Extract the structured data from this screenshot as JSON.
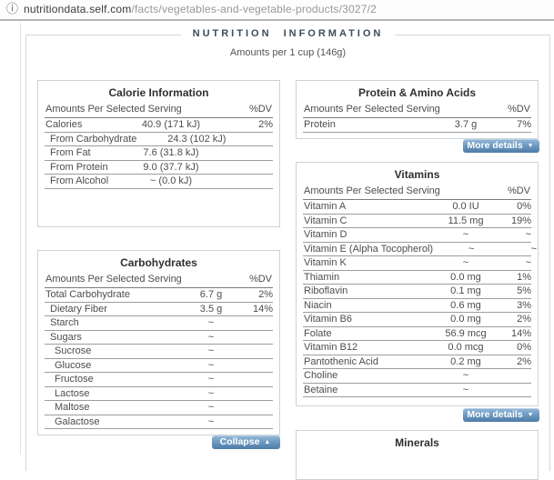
{
  "browser": {
    "info_icon": "ⓘ",
    "url_domain": "nutritiondata.self.com",
    "url_path": "/facts/vegetables-and-vegetable-products/3027/2"
  },
  "header": {
    "section_title": "NUTRITION INFORMATION",
    "serving_note": "Amounts per 1 cup (146g)"
  },
  "labels": {
    "amounts_header": "Amounts Per Selected Serving",
    "dv_header": "%DV",
    "more_details": "More details",
    "collapse": "Collapse",
    "chevron_down": "▼",
    "chevron_up": "▲"
  },
  "colors": {
    "button_gradient_top": "#96b9d8",
    "button_gradient_bottom": "#4e7ba6",
    "box_border": "#c9d3da",
    "row_divider": "#9d9d9d",
    "header_divider": "#7c7c7c",
    "legend_text": "#3d4c5c"
  },
  "tables": {
    "calories": {
      "title": "Calorie Information",
      "rows": [
        {
          "label": "Calories",
          "amount": "40.9 (171 kJ)",
          "dv": "2%",
          "indent": 0
        },
        {
          "label": "From Carbohydrate",
          "amount": "24.3 (102 kJ)",
          "dv": "",
          "indent": 1
        },
        {
          "label": "From Fat",
          "amount": "7.6 (31.8 kJ)",
          "dv": "",
          "indent": 1
        },
        {
          "label": "From Protein",
          "amount": "9.0 (37.7 kJ)",
          "dv": "",
          "indent": 1
        },
        {
          "label": "From Alcohol",
          "amount": "~ (0.0 kJ)",
          "dv": "",
          "indent": 1
        }
      ]
    },
    "carbohydrates": {
      "title": "Carbohydrates",
      "rows": [
        {
          "label": "Total Carbohydrate",
          "amount": "6.7 g",
          "dv": "2%",
          "indent": 0
        },
        {
          "label": "Dietary Fiber",
          "amount": "3.5 g",
          "dv": "14%",
          "indent": 1
        },
        {
          "label": "Starch",
          "amount": "~",
          "dv": "",
          "indent": 1
        },
        {
          "label": "Sugars",
          "amount": "~",
          "dv": "",
          "indent": 1
        },
        {
          "label": "Sucrose",
          "amount": "~",
          "dv": "",
          "indent": 2
        },
        {
          "label": "Glucose",
          "amount": "~",
          "dv": "",
          "indent": 2
        },
        {
          "label": "Fructose",
          "amount": "~",
          "dv": "",
          "indent": 2
        },
        {
          "label": "Lactose",
          "amount": "~",
          "dv": "",
          "indent": 2
        },
        {
          "label": "Maltose",
          "amount": "~",
          "dv": "",
          "indent": 2
        },
        {
          "label": "Galactose",
          "amount": "~",
          "dv": "",
          "indent": 2
        }
      ]
    },
    "protein": {
      "title": "Protein & Amino Acids",
      "rows": [
        {
          "label": "Protein",
          "amount": "3.7 g",
          "dv": "7%",
          "indent": 0
        }
      ]
    },
    "vitamins": {
      "title": "Vitamins",
      "rows": [
        {
          "label": "Vitamin A",
          "amount": "0.0 IU",
          "dv": "0%",
          "indent": 0
        },
        {
          "label": "Vitamin C",
          "amount": "11.5 mg",
          "dv": "19%",
          "indent": 0
        },
        {
          "label": "Vitamin D",
          "amount": "~",
          "dv": "~",
          "indent": 0
        },
        {
          "label": "Vitamin E (Alpha Tocopherol)",
          "amount": "~",
          "dv": "~",
          "indent": 0
        },
        {
          "label": "Vitamin K",
          "amount": "~",
          "dv": "~",
          "indent": 0
        },
        {
          "label": "Thiamin",
          "amount": "0.0 mg",
          "dv": "1%",
          "indent": 0
        },
        {
          "label": "Riboflavin",
          "amount": "0.1 mg",
          "dv": "5%",
          "indent": 0
        },
        {
          "label": "Niacin",
          "amount": "0.6 mg",
          "dv": "3%",
          "indent": 0
        },
        {
          "label": "Vitamin B6",
          "amount": "0.0 mg",
          "dv": "2%",
          "indent": 0
        },
        {
          "label": "Folate",
          "amount": "56.9 mcg",
          "dv": "14%",
          "indent": 0
        },
        {
          "label": "Vitamin B12",
          "amount": "0.0 mcg",
          "dv": "0%",
          "indent": 0
        },
        {
          "label": "Pantothenic Acid",
          "amount": "0.2 mg",
          "dv": "2%",
          "indent": 0
        },
        {
          "label": "Choline",
          "amount": "~",
          "dv": "",
          "indent": 0
        },
        {
          "label": "Betaine",
          "amount": "~",
          "dv": "",
          "indent": 0
        }
      ]
    },
    "minerals": {
      "title": "Minerals",
      "rows": []
    }
  }
}
